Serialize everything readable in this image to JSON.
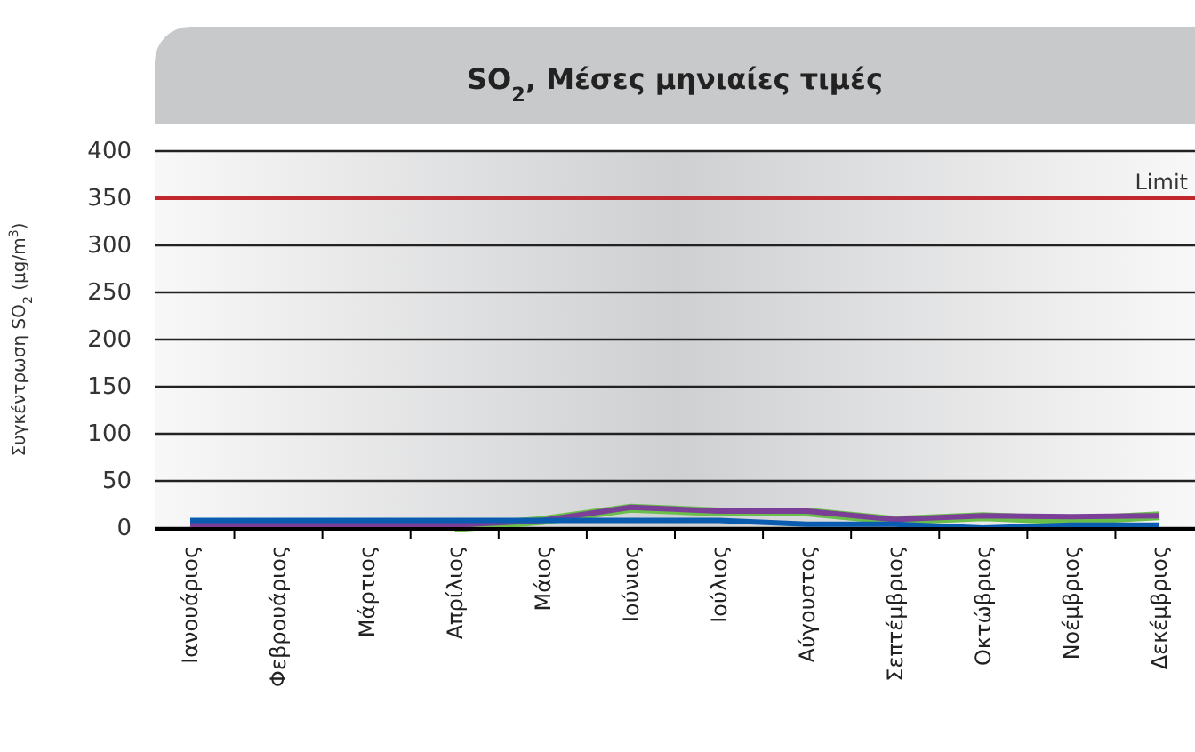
{
  "chart_data": {
    "type": "line",
    "title": "SO$_{2}$, Μέσες μηνιαίες τιμές",
    "ylabel": "Συγκέντρωση SO$_{2}$ (μg/m$^{3}$)",
    "categories": [
      "Ιανουάριος",
      "Φεβρουάριος",
      "Μάρτιος",
      "Απρίλιος",
      "Μάιος",
      "Ιούνιος",
      "Ιούλιος",
      "Αύγουστος",
      "Σεπτέμβριος",
      "Οκτώβριος",
      "Νοέμβριος",
      "Δεκέμβριος"
    ],
    "series": [
      {
        "color": "#6abf4b",
        "values": [
          null,
          null,
          null,
          0,
          8,
          21,
          17,
          17,
          8,
          12,
          8,
          13
        ]
      },
      {
        "color": "#7b3f98",
        "values": [
          3,
          3,
          3,
          3,
          8,
          22,
          18,
          18,
          9,
          13,
          12,
          13
        ]
      },
      {
        "color": "#0a5cb0",
        "values": [
          8,
          8,
          8,
          8,
          8,
          8,
          8,
          4,
          4,
          0,
          3,
          3
        ]
      }
    ],
    "ylim": [
      0,
      400
    ],
    "yticks": [
      0,
      50,
      100,
      150,
      200,
      250,
      300,
      350,
      400
    ],
    "grid": "y",
    "line_style": "solid",
    "marker": "none",
    "ref_lines": [
      {
        "axis": "y",
        "value": 350,
        "label": "Limit",
        "color": "#c0282d"
      }
    ]
  }
}
